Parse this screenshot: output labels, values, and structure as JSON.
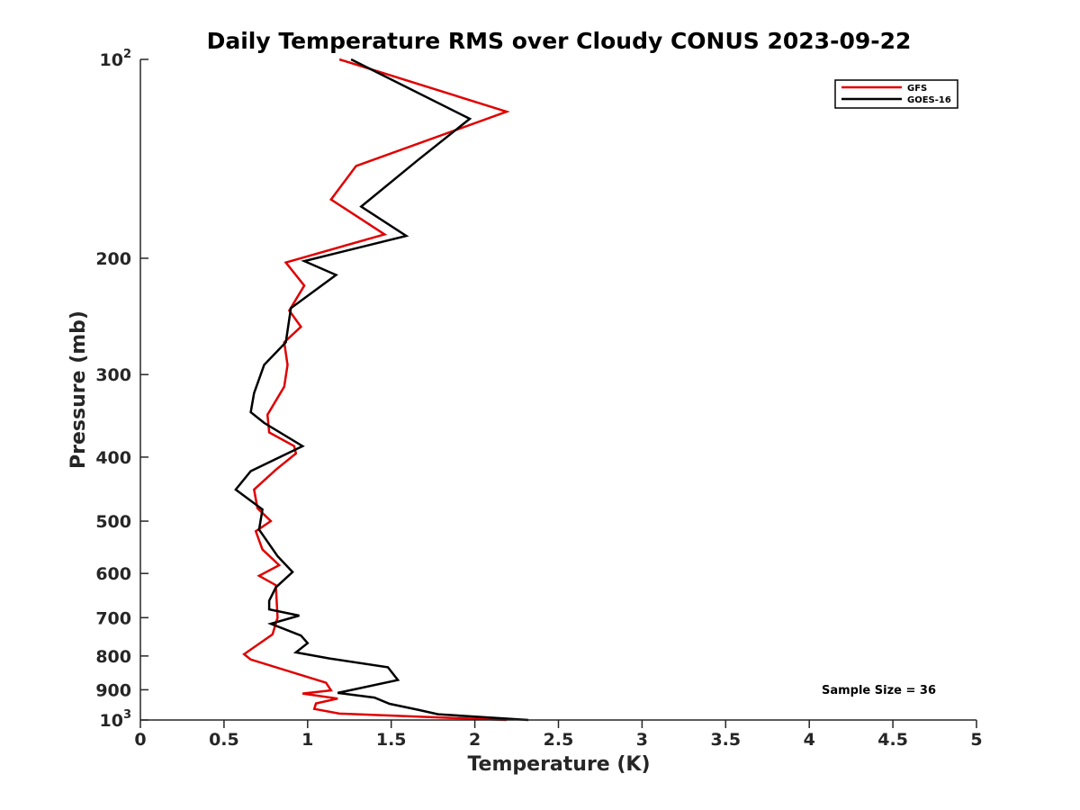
{
  "chart_data": {
    "type": "line",
    "title": "Daily Temperature RMS over Cloudy CONUS 2023-09-22",
    "xlabel": "Temperature (K)",
    "ylabel": "Pressure (mb)",
    "xlim": [
      0,
      5
    ],
    "ylim": [
      100,
      1000
    ],
    "y_scale": "log",
    "y_reversed": true,
    "x_ticks": [
      {
        "value": 0,
        "label": "0"
      },
      {
        "value": 0.5,
        "label": "0.5"
      },
      {
        "value": 1,
        "label": "1"
      },
      {
        "value": 1.5,
        "label": "1.5"
      },
      {
        "value": 2,
        "label": "2"
      },
      {
        "value": 2.5,
        "label": "2.5"
      },
      {
        "value": 3,
        "label": "3"
      },
      {
        "value": 3.5,
        "label": "3.5"
      },
      {
        "value": 4,
        "label": "4"
      },
      {
        "value": 4.5,
        "label": "4.5"
      },
      {
        "value": 5,
        "label": "5"
      }
    ],
    "y_ticks": [
      {
        "value": 100,
        "label": "10",
        "exp": "2"
      },
      {
        "value": 200,
        "label": "200"
      },
      {
        "value": 300,
        "label": "300"
      },
      {
        "value": 400,
        "label": "400"
      },
      {
        "value": 500,
        "label": "500"
      },
      {
        "value": 600,
        "label": "600"
      },
      {
        "value": 700,
        "label": "700"
      },
      {
        "value": 800,
        "label": "800"
      },
      {
        "value": 900,
        "label": "900"
      },
      {
        "value": 1000,
        "label": "10",
        "exp": "3"
      }
    ],
    "grid": false,
    "legend_position": "top-right",
    "annotation": "Sample Size = 36",
    "series": [
      {
        "name": "GFS",
        "color": "#e00000",
        "points": [
          [
            1.19,
            100
          ],
          [
            2.19,
            120
          ],
          [
            1.29,
            145
          ],
          [
            1.14,
            163
          ],
          [
            1.46,
            184
          ],
          [
            0.87,
            203
          ],
          [
            0.98,
            220
          ],
          [
            0.89,
            240
          ],
          [
            0.96,
            254
          ],
          [
            0.86,
            268
          ],
          [
            0.88,
            290
          ],
          [
            0.86,
            313
          ],
          [
            0.76,
            345
          ],
          [
            0.77,
            367
          ],
          [
            0.92,
            385
          ],
          [
            0.93,
            395
          ],
          [
            0.81,
            418
          ],
          [
            0.68,
            448
          ],
          [
            0.7,
            478
          ],
          [
            0.78,
            500
          ],
          [
            0.69,
            518
          ],
          [
            0.73,
            552
          ],
          [
            0.83,
            583
          ],
          [
            0.71,
            605
          ],
          [
            0.81,
            625
          ],
          [
            0.82,
            700
          ],
          [
            0.79,
            742
          ],
          [
            0.62,
            795
          ],
          [
            0.66,
            810
          ],
          [
            1.11,
            878
          ],
          [
            1.14,
            902
          ],
          [
            0.97,
            912
          ],
          [
            1.18,
            928
          ],
          [
            1.05,
            944
          ],
          [
            1.04,
            962
          ],
          [
            1.19,
            978
          ],
          [
            2.19,
            1000
          ]
        ]
      },
      {
        "name": "GOES-16",
        "color": "#000000",
        "points": [
          [
            1.26,
            100
          ],
          [
            1.97,
            123
          ],
          [
            1.66,
            142
          ],
          [
            1.32,
            167
          ],
          [
            1.59,
            185
          ],
          [
            0.98,
            202
          ],
          [
            1.17,
            212
          ],
          [
            0.9,
            238
          ],
          [
            0.87,
            268
          ],
          [
            0.74,
            290
          ],
          [
            0.68,
            320
          ],
          [
            0.66,
            342
          ],
          [
            0.74,
            355
          ],
          [
            0.97,
            385
          ],
          [
            0.66,
            420
          ],
          [
            0.57,
            448
          ],
          [
            0.73,
            480
          ],
          [
            0.71,
            515
          ],
          [
            0.82,
            565
          ],
          [
            0.91,
            597
          ],
          [
            0.81,
            630
          ],
          [
            0.77,
            660
          ],
          [
            0.77,
            680
          ],
          [
            0.95,
            695
          ],
          [
            0.78,
            715
          ],
          [
            0.96,
            745
          ],
          [
            1.0,
            765
          ],
          [
            0.93,
            790
          ],
          [
            1.13,
            807
          ],
          [
            1.48,
            832
          ],
          [
            1.54,
            870
          ],
          [
            1.18,
            910
          ],
          [
            1.4,
            925
          ],
          [
            1.49,
            945
          ],
          [
            1.66,
            965
          ],
          [
            1.78,
            980
          ],
          [
            2.32,
            1000
          ]
        ]
      }
    ]
  }
}
